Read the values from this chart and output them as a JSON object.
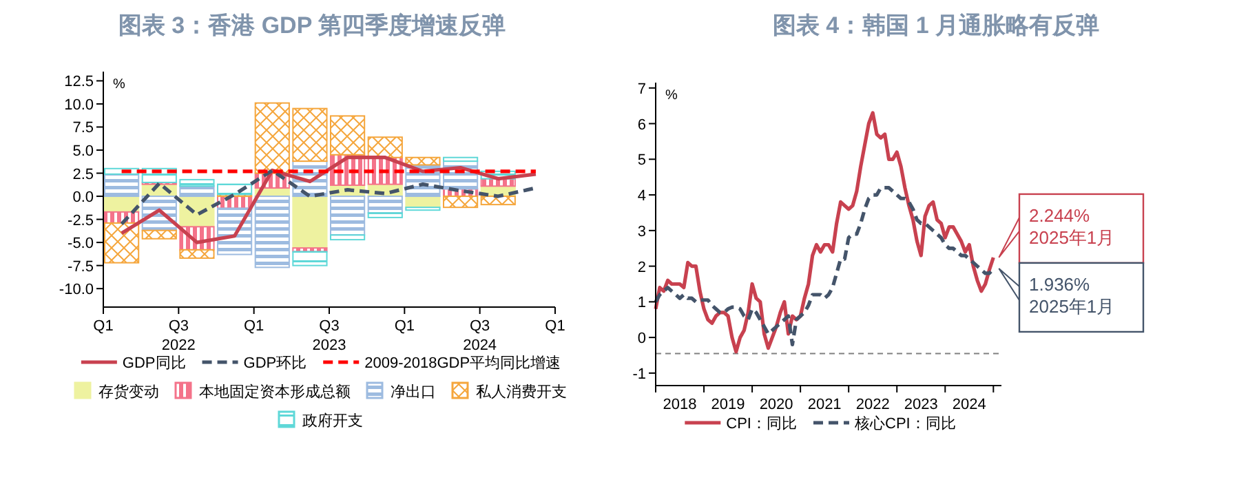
{
  "chart_data": [
    {
      "type": "bar",
      "title": "图表 3：香港 GDP 第四季度增速反弹",
      "ylabel": "%",
      "stacked": true,
      "legend": "bottom",
      "x": [
        "2022-02-15",
        "2022-05-15",
        "2022-08-15",
        "2022-11-15",
        "2023-02-15",
        "2023-05-15",
        "2023-08-15",
        "2023-11-15",
        "2024-02-15",
        "2024-05-15",
        "2024-08-15",
        "2024-11-15"
      ],
      "xlim": [
        "2022-01",
        "2025-01"
      ],
      "xticks": [
        {
          "value": "2022-01",
          "label": "Q1"
        },
        {
          "value": "2022-07",
          "label": "Q3\n2022"
        },
        {
          "value": "2023-01",
          "label": "Q1"
        },
        {
          "value": "2023-07",
          "label": "Q3\n2023"
        },
        {
          "value": "2024-01",
          "label": "Q1"
        },
        {
          "value": "2024-07",
          "label": "Q3\n2024"
        },
        {
          "value": "2025-01",
          "label": "Q1"
        }
      ],
      "ylim": [
        -12,
        13.5
      ],
      "yticks": [
        {
          "value": -10,
          "label": "-10.0"
        },
        {
          "value": -7.5,
          "label": "-7.5"
        },
        {
          "value": -5,
          "label": "-5.0"
        },
        {
          "value": -2.5,
          "label": "-2.5"
        },
        {
          "value": 0,
          "label": "0.0"
        },
        {
          "value": 2.5,
          "label": "2.5"
        },
        {
          "value": 5,
          "label": "5.0"
        },
        {
          "value": 7.5,
          "label": "7.5"
        },
        {
          "value": 10,
          "label": "10.0"
        },
        {
          "value": 12.5,
          "label": "12.5"
        }
      ],
      "series": [
        {
          "name": "GDP同比",
          "type": "line",
          "color": "#c8414f",
          "values": [
            -4.0,
            -1.5,
            -5.0,
            -4.3,
            2.8,
            1.6,
            4.2,
            4.2,
            2.7,
            3.1,
            1.9,
            2.4
          ]
        },
        {
          "name": "GDP环比",
          "type": "line",
          "color": "#44546a",
          "line_style": "dashed",
          "values": [
            -3.0,
            1.4,
            -2.0,
            0.2,
            2.8,
            0.0,
            0.7,
            0.3,
            1.3,
            0.6,
            0.0,
            0.9
          ]
        },
        {
          "name": "2009-2018GDP平均同比增速",
          "type": "line",
          "color": "#ff0000",
          "line_style": "dashed",
          "values": [
            2.7,
            2.7,
            2.7,
            2.7,
            2.7,
            2.7,
            2.7,
            2.7,
            2.7,
            2.7,
            2.7,
            2.7
          ]
        },
        {
          "name": "存货变动",
          "color": "#eef2a0",
          "values": [
            -1.7,
            1.3,
            -3.3,
            null,
            0.9,
            -5.6,
            1.2,
            1.3,
            -1.2,
            null,
            1.1,
            null
          ]
        },
        {
          "name": "本地固定资本形成总额",
          "color": "#f4738a",
          "values": [
            -1.2,
            0.2,
            -2.5,
            -1.3,
            1.6,
            -0.4,
            3.3,
            2.9,
            null,
            0.8,
            0.8,
            null
          ]
        },
        {
          "name": "净出口",
          "color": "#9dbbe0",
          "values": [
            2.4,
            -3.7,
            1.1,
            -5.0,
            -7.7,
            3.8,
            -4.2,
            -1.8,
            3.4,
            3.0,
            null,
            null
          ]
        },
        {
          "name": "私人消费开支",
          "color": "#f5a63c",
          "values": [
            -4.3,
            -0.9,
            -0.9,
            0.2,
            7.6,
            5.7,
            4.2,
            2.2,
            0.8,
            -1.2,
            -0.9,
            null
          ]
        },
        {
          "name": "政府开支",
          "color": "#5fd8d8",
          "values": [
            0.6,
            1.5,
            0.7,
            1.1,
            null,
            -1.5,
            -0.5,
            -0.5,
            -0.3,
            0.4,
            0.8,
            null
          ]
        }
      ]
    },
    {
      "type": "line",
      "title": "图表 4：韩国 1 月通胀略有反弹",
      "ylabel": "%",
      "legend": "bottom",
      "x": [
        "2018-01",
        "2018-02",
        "2018-03",
        "2018-04",
        "2018-05",
        "2018-06",
        "2018-07",
        "2018-08",
        "2018-09",
        "2018-10",
        "2018-11",
        "2018-12",
        "2019-01",
        "2019-02",
        "2019-03",
        "2019-04",
        "2019-05",
        "2019-06",
        "2019-07",
        "2019-08",
        "2019-09",
        "2019-10",
        "2019-11",
        "2019-12",
        "2020-01",
        "2020-02",
        "2020-03",
        "2020-04",
        "2020-05",
        "2020-06",
        "2020-07",
        "2020-08",
        "2020-09",
        "2020-10",
        "2020-11",
        "2020-12",
        "2021-01",
        "2021-02",
        "2021-03",
        "2021-04",
        "2021-05",
        "2021-06",
        "2021-07",
        "2021-08",
        "2021-09",
        "2021-10",
        "2021-11",
        "2021-12",
        "2022-01",
        "2022-02",
        "2022-03",
        "2022-04",
        "2022-05",
        "2022-06",
        "2022-07",
        "2022-08",
        "2022-09",
        "2022-10",
        "2022-11",
        "2022-12",
        "2023-01",
        "2023-02",
        "2023-03",
        "2023-04",
        "2023-05",
        "2023-06",
        "2023-07",
        "2023-08",
        "2023-09",
        "2023-10",
        "2023-11",
        "2023-12",
        "2024-01",
        "2024-02",
        "2024-03",
        "2024-04",
        "2024-05",
        "2024-06",
        "2024-07",
        "2024-08",
        "2024-09",
        "2024-10",
        "2024-11",
        "2024-12",
        "2025-01"
      ],
      "xlim": [
        "2018-01",
        "2025-03"
      ],
      "xticks": [
        {
          "value": "2018-01",
          "label": null
        },
        {
          "value": "2018-07",
          "label": "2018"
        },
        {
          "value": "2019-01",
          "label": null
        },
        {
          "value": "2019-07",
          "label": "2019"
        },
        {
          "value": "2020-01",
          "label": null
        },
        {
          "value": "2020-07",
          "label": "2020"
        },
        {
          "value": "2021-01",
          "label": null
        },
        {
          "value": "2021-07",
          "label": "2021"
        },
        {
          "value": "2022-01",
          "label": null
        },
        {
          "value": "2022-07",
          "label": "2022"
        },
        {
          "value": "2023-01",
          "label": null
        },
        {
          "value": "2023-07",
          "label": "2023"
        },
        {
          "value": "2024-01",
          "label": null
        },
        {
          "value": "2024-07",
          "label": "2024"
        },
        {
          "value": "2025-01",
          "label": null
        }
      ],
      "ylim": [
        -1.35,
        7.15
      ],
      "yticks": [
        -1,
        0,
        1,
        2,
        3,
        4,
        5,
        6,
        7
      ],
      "ref_lines": [
        {
          "axis": "y",
          "value": -0.45,
          "color": "#808080",
          "line_style": "dashed"
        }
      ],
      "series": [
        {
          "name": "CPI：同比",
          "color": "#c8414f",
          "values": [
            0.8,
            1.4,
            1.3,
            1.6,
            1.5,
            1.5,
            1.5,
            1.4,
            2.1,
            2.0,
            2.0,
            1.3,
            0.8,
            0.5,
            0.4,
            0.6,
            0.7,
            0.7,
            0.6,
            0.0,
            -0.4,
            0.0,
            0.2,
            0.7,
            1.5,
            1.1,
            1.0,
            0.1,
            -0.3,
            0.0,
            0.3,
            0.7,
            1.0,
            0.1,
            0.6,
            0.5,
            0.6,
            1.1,
            1.5,
            2.3,
            2.6,
            2.4,
            2.6,
            2.6,
            2.4,
            3.2,
            3.8,
            3.7,
            3.6,
            3.7,
            4.1,
            4.8,
            5.4,
            6.0,
            6.3,
            5.7,
            5.6,
            5.7,
            5.0,
            5.0,
            5.2,
            4.8,
            4.2,
            3.7,
            3.3,
            2.7,
            2.3,
            3.4,
            3.7,
            3.8,
            3.3,
            3.2,
            2.8,
            3.1,
            3.1,
            2.9,
            2.7,
            2.4,
            2.6,
            2.0,
            1.6,
            1.3,
            1.5,
            1.9,
            2.244
          ]
        },
        {
          "name": "核心CPI：同比",
          "color": "#44546a",
          "line_style": "dashed",
          "values": [
            1.0,
            1.2,
            1.3,
            1.4,
            1.3,
            1.2,
            1.1,
            1.2,
            1.1,
            1.1,
            1.0,
            1.05,
            1.05,
            1.05,
            0.9,
            0.8,
            0.7,
            0.7,
            0.8,
            0.85,
            0.85,
            0.8,
            0.6,
            0.5,
            0.8,
            0.7,
            0.5,
            0.3,
            0.1,
            0.2,
            0.3,
            0.4,
            0.5,
            0.6,
            -0.2,
            0.5,
            0.6,
            0.7,
            0.9,
            1.2,
            1.2,
            1.2,
            1.1,
            1.2,
            1.4,
            1.8,
            2.2,
            2.2,
            2.8,
            2.9,
            2.9,
            3.2,
            3.6,
            3.9,
            4.0,
            4.0,
            4.2,
            4.2,
            4.2,
            4.1,
            4.0,
            3.9,
            3.9,
            3.8,
            3.6,
            3.3,
            3.2,
            3.2,
            3.1,
            3.0,
            2.9,
            2.8,
            2.6,
            2.5,
            2.5,
            2.4,
            2.3,
            2.3,
            2.2,
            2.1,
            2.0,
            1.9,
            1.8,
            1.8,
            1.936
          ]
        }
      ],
      "annotations": [
        {
          "text": "2.244%\n2025年1月",
          "x": "2025-01",
          "y": 2.244
        },
        {
          "text": "1.936%\n2025年1月",
          "x": "2025-01",
          "y": 1.936
        }
      ]
    }
  ]
}
